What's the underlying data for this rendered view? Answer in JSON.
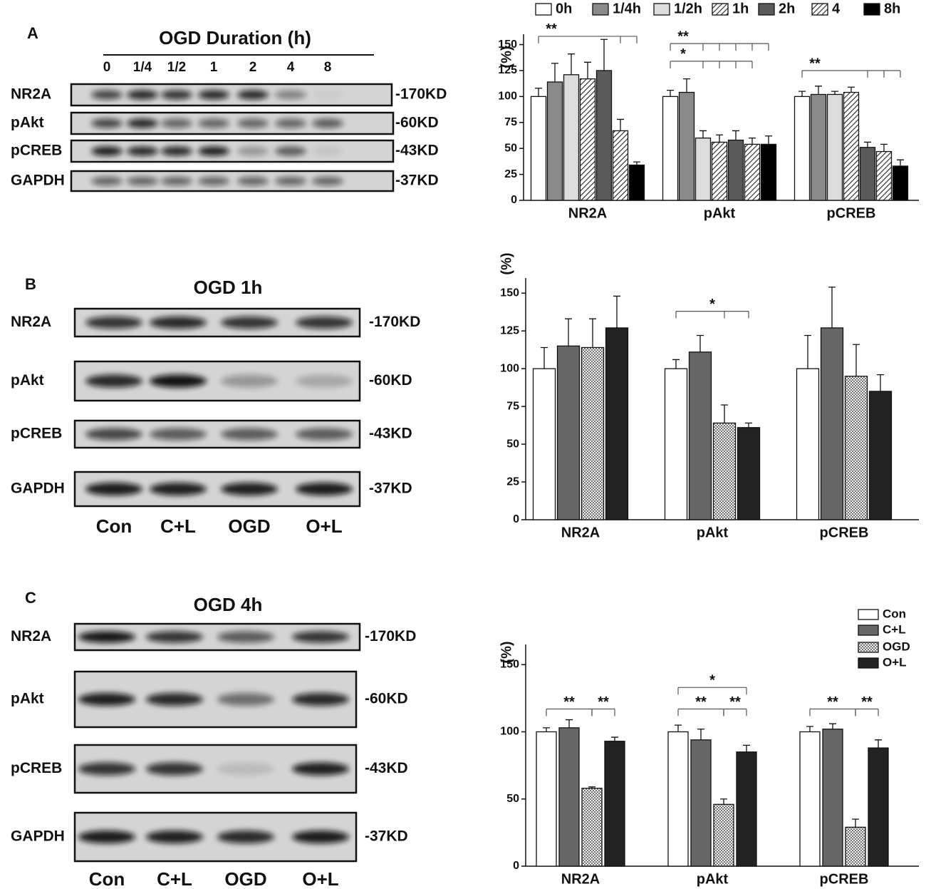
{
  "blots": [
    {
      "panel": "A",
      "title": "OGD Duration (h)",
      "lanes": [
        "0",
        "1/4",
        "1/2",
        "1",
        "2",
        "4",
        "8"
      ],
      "rows": [
        {
          "protein": "NR2A",
          "size": "-170KD"
        },
        {
          "protein": "pAkt",
          "size": "-60KD"
        },
        {
          "protein": "pCREB",
          "size": "-43KD"
        },
        {
          "protein": "GAPDH",
          "size": "-37KD"
        }
      ]
    },
    {
      "panel": "B",
      "title": "OGD 1h",
      "lanes": [
        "Con",
        "C+L",
        "OGD",
        "O+L"
      ],
      "rows": [
        {
          "protein": "NR2A",
          "size": "-170KD"
        },
        {
          "protein": "pAkt",
          "size": "-60KD"
        },
        {
          "protein": "pCREB",
          "size": "-43KD"
        },
        {
          "protein": "GAPDH",
          "size": "-37KD"
        }
      ]
    },
    {
      "panel": "C",
      "title": "OGD 4h",
      "lanes": [
        "Con",
        "C+L",
        "OGD",
        "O+L"
      ],
      "rows": [
        {
          "protein": "NR2A",
          "size": "-170KD"
        },
        {
          "protein": "pAkt",
          "size": "-60KD"
        },
        {
          "protein": "pCREB",
          "size": "-43KD"
        },
        {
          "protein": "GAPDH",
          "size": "-37KD"
        }
      ]
    }
  ],
  "chart_data": [
    {
      "type": "bar",
      "ylabel": "(%)",
      "categories": [
        "NR2A",
        "pAkt",
        "pCREB"
      ],
      "ylim": [
        0,
        160
      ],
      "yticks": [
        0,
        25,
        50,
        75,
        100,
        125,
        150
      ],
      "legend": "top",
      "series": [
        {
          "name": "0h",
          "color": "#ffffff",
          "values": [
            100,
            100,
            100
          ],
          "errors": [
            8,
            6,
            5
          ]
        },
        {
          "name": "1/4h",
          "color": "#8a8a8a",
          "values": [
            114,
            104,
            102
          ],
          "errors": [
            18,
            13,
            8
          ]
        },
        {
          "name": "1/2h",
          "color": "#dcdcdc",
          "values": [
            121,
            60,
            102
          ],
          "errors": [
            20,
            7,
            3
          ]
        },
        {
          "name": "1h",
          "color": "#ffffff",
          "pattern": "hatch",
          "values": [
            117,
            56,
            104
          ],
          "errors": [
            16,
            7,
            5
          ]
        },
        {
          "name": "2h",
          "color": "#5a5a5a",
          "values": [
            125,
            58,
            51
          ],
          "errors": [
            30,
            9,
            5
          ]
        },
        {
          "name": "4",
          "color": "#ffffff",
          "pattern": "hatch",
          "values": [
            67,
            54,
            47
          ],
          "errors": [
            11,
            6,
            7
          ]
        },
        {
          "name": "8h",
          "color": "#000000",
          "values": [
            34,
            54,
            33
          ],
          "errors": [
            3,
            8,
            6
          ]
        }
      ],
      "annotations": [
        "**",
        "**",
        "*",
        "**"
      ]
    },
    {
      "type": "bar",
      "ylabel": "(%)",
      "categories": [
        "NR2A",
        "pAkt",
        "pCREB"
      ],
      "ylim": [
        0,
        160
      ],
      "yticks": [
        0,
        25,
        50,
        75,
        100,
        125,
        150
      ],
      "series": [
        {
          "color": "#ffffff",
          "values": [
            100,
            100,
            100
          ],
          "errors": [
            14,
            6,
            22
          ]
        },
        {
          "color": "#666666",
          "values": [
            115,
            111,
            127
          ],
          "errors": [
            18,
            11,
            27
          ]
        },
        {
          "color": "#e6e6e6",
          "pattern": "dots",
          "values": [
            114,
            64,
            95
          ],
          "errors": [
            19,
            12,
            21
          ]
        },
        {
          "color": "#222222",
          "values": [
            127,
            61,
            85
          ],
          "errors": [
            21,
            3,
            11
          ]
        }
      ],
      "annotations": [
        "*"
      ]
    },
    {
      "type": "bar",
      "ylabel": "(%)",
      "categories": [
        "NR2A",
        "pAkt",
        "pCREB"
      ],
      "ylim": [
        0,
        165
      ],
      "yticks": [
        0,
        50,
        100,
        150
      ],
      "legend": "upper right",
      "series": [
        {
          "name": "Con",
          "color": "#ffffff",
          "values": [
            100,
            100,
            100
          ],
          "errors": [
            3,
            5,
            4
          ]
        },
        {
          "name": "C+L",
          "color": "#666666",
          "values": [
            103,
            94,
            102
          ],
          "errors": [
            6,
            8,
            4
          ]
        },
        {
          "name": "OGD",
          "color": "#e6e6e6",
          "pattern": "dots",
          "values": [
            58,
            46,
            29
          ],
          "errors": [
            1,
            4,
            6
          ]
        },
        {
          "name": "O+L",
          "color": "#222222",
          "values": [
            93,
            85,
            88
          ],
          "errors": [
            3,
            5,
            6
          ]
        }
      ],
      "annotations": [
        "**",
        "**",
        "*",
        "**",
        "**",
        "**",
        "**"
      ]
    }
  ]
}
